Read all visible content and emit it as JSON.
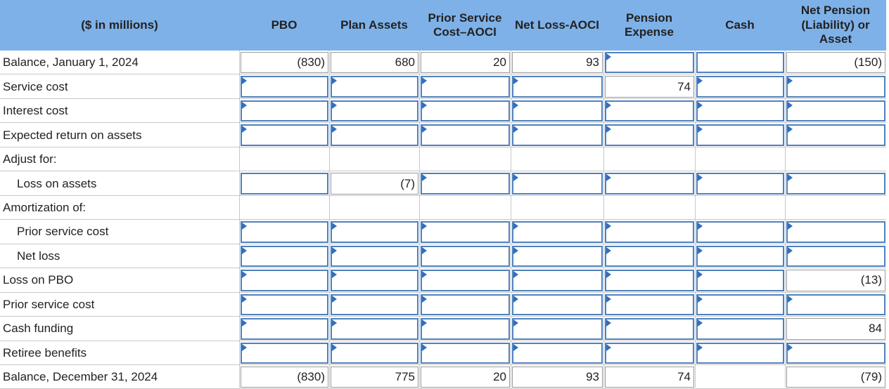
{
  "header": {
    "columns": [
      "($ in millions)",
      "PBO",
      "Plan Assets",
      "Prior Service Cost–AOCI",
      "Net Loss-AOCI",
      "Pension Expense",
      "Cash",
      "Net Pension (Liability) or Asset"
    ]
  },
  "table": {
    "rows": [
      {
        "label": "Balance, January 1, 2024",
        "cells": [
          "(830)",
          "680",
          "20",
          "93",
          null,
          null,
          "(150)"
        ]
      },
      {
        "label": "Service cost",
        "cells": [
          null,
          null,
          null,
          null,
          "74",
          null,
          null
        ]
      },
      {
        "label": "Interest cost",
        "cells": [
          null,
          null,
          null,
          null,
          null,
          null,
          null
        ]
      },
      {
        "label": "Expected return on assets",
        "cells": [
          null,
          null,
          null,
          null,
          null,
          null,
          null
        ]
      },
      {
        "label": "Adjust for:",
        "cells": [
          null,
          null,
          null,
          null,
          null,
          null,
          null
        ]
      },
      {
        "label": "Loss on assets",
        "cells": [
          null,
          "(7)",
          null,
          null,
          null,
          null,
          null
        ]
      },
      {
        "label": "Amortization of:",
        "cells": [
          null,
          null,
          null,
          null,
          null,
          null,
          null
        ]
      },
      {
        "label": "Prior service cost",
        "cells": [
          null,
          null,
          null,
          null,
          null,
          null,
          null
        ]
      },
      {
        "label": "Net loss",
        "cells": [
          null,
          null,
          null,
          null,
          null,
          null,
          null
        ]
      },
      {
        "label": "Loss on PBO",
        "cells": [
          null,
          null,
          null,
          null,
          null,
          null,
          "(13)"
        ]
      },
      {
        "label": "Prior service cost",
        "cells": [
          null,
          null,
          null,
          null,
          null,
          null,
          null
        ]
      },
      {
        "label": "Cash funding",
        "cells": [
          null,
          null,
          null,
          null,
          null,
          null,
          "84"
        ]
      },
      {
        "label": "Retiree benefits",
        "cells": [
          null,
          null,
          null,
          null,
          null,
          null,
          null
        ]
      },
      {
        "label": "Balance, December 31, 2024",
        "cells": [
          "(830)",
          "775",
          "20",
          "93",
          "74",
          null,
          "(79)"
        ]
      }
    ]
  }
}
